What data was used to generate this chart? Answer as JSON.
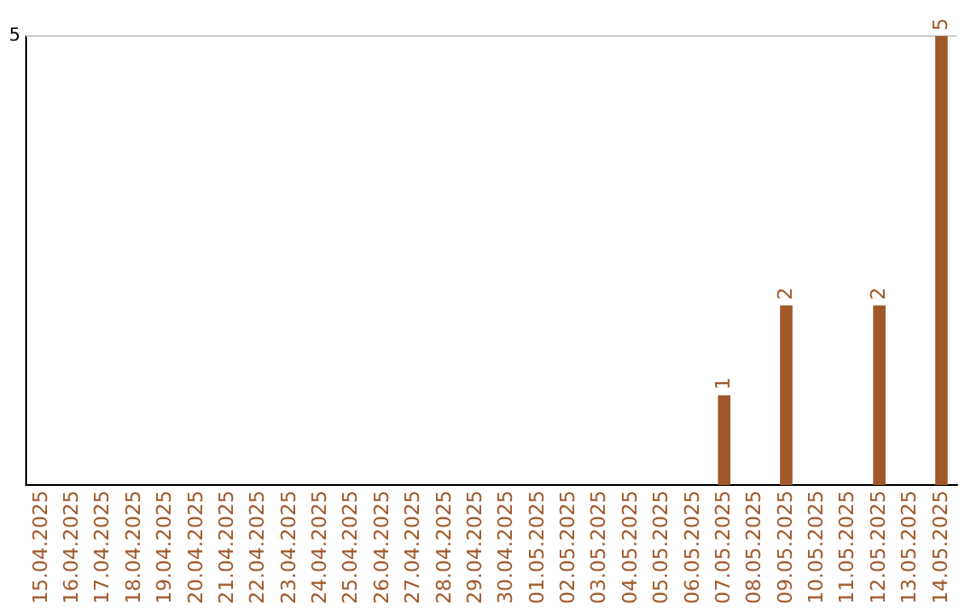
{
  "chart_data": {
    "type": "bar",
    "categories": [
      "15.04.2025",
      "16.04.2025",
      "17.04.2025",
      "18.04.2025",
      "19.04.2025",
      "20.04.2025",
      "21.04.2025",
      "22.04.2025",
      "23.04.2025",
      "24.04.2025",
      "25.04.2025",
      "26.04.2025",
      "27.04.2025",
      "28.04.2025",
      "29.04.2025",
      "30.04.2025",
      "01.05.2025",
      "02.05.2025",
      "03.05.2025",
      "04.05.2025",
      "05.05.2025",
      "06.05.2025",
      "07.05.2025",
      "08.05.2025",
      "09.05.2025",
      "10.05.2025",
      "11.05.2025",
      "12.05.2025",
      "13.05.2025",
      "14.05.2025"
    ],
    "values": [
      null,
      null,
      null,
      null,
      null,
      null,
      null,
      null,
      null,
      null,
      null,
      null,
      null,
      null,
      null,
      null,
      null,
      null,
      null,
      null,
      null,
      null,
      1,
      null,
      2,
      null,
      null,
      2,
      null,
      5
    ],
    "data_labels": true,
    "color": "#a0582a",
    "ylim": [
      0,
      5
    ],
    "yticks": [
      5
    ],
    "ref_lines": [
      {
        "axis": "y",
        "value": 5,
        "color": "#cccccc"
      }
    ],
    "legend": false
  }
}
